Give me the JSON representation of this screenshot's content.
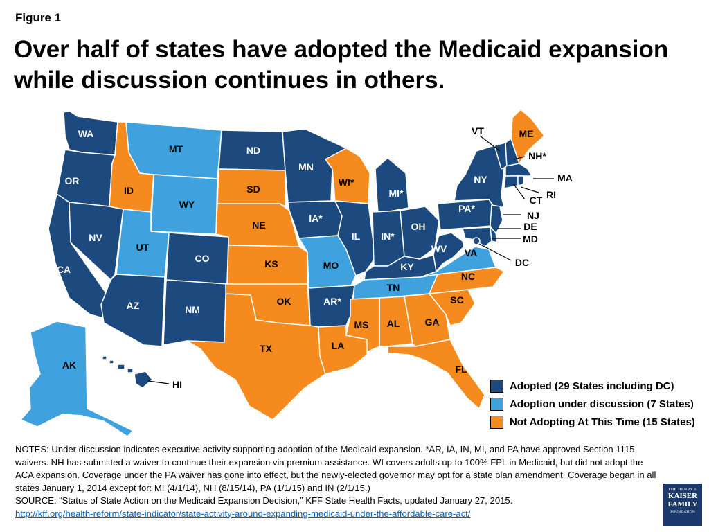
{
  "figure_label": "Figure 1",
  "title": "Over half of states have adopted the Medicaid expansion while discussion continues in others.",
  "colors": {
    "adopted": "#1c4a7e",
    "discussion": "#3fa2de",
    "not_adopting": "#f58a1f"
  },
  "legend": [
    {
      "status": "adopted",
      "label": "Adopted (29 States including DC)"
    },
    {
      "status": "discussion",
      "label": "Adoption under discussion (7 States)"
    },
    {
      "status": "not_adopting",
      "label": "Not Adopting At This Time (15 States)"
    }
  ],
  "states": {
    "WA": {
      "label": "WA",
      "status": "adopted"
    },
    "OR": {
      "label": "OR",
      "status": "adopted"
    },
    "CA": {
      "label": "CA",
      "status": "adopted"
    },
    "NV": {
      "label": "NV",
      "status": "adopted"
    },
    "ID": {
      "label": "ID",
      "status": "not_adopting"
    },
    "MT": {
      "label": "MT",
      "status": "discussion"
    },
    "WY": {
      "label": "WY",
      "status": "discussion"
    },
    "UT": {
      "label": "UT",
      "status": "discussion"
    },
    "AZ": {
      "label": "AZ",
      "status": "adopted"
    },
    "CO": {
      "label": "CO",
      "status": "adopted"
    },
    "NM": {
      "label": "NM",
      "status": "adopted"
    },
    "ND": {
      "label": "ND",
      "status": "adopted"
    },
    "SD": {
      "label": "SD",
      "status": "not_adopting"
    },
    "NE": {
      "label": "NE",
      "status": "not_adopting"
    },
    "KS": {
      "label": "KS",
      "status": "not_adopting"
    },
    "OK": {
      "label": "OK",
      "status": "not_adopting"
    },
    "TX": {
      "label": "TX",
      "status": "not_adopting"
    },
    "MN": {
      "label": "MN",
      "status": "adopted"
    },
    "IA": {
      "label": "IA*",
      "status": "adopted"
    },
    "MO": {
      "label": "MO",
      "status": "discussion"
    },
    "AR": {
      "label": "AR*",
      "status": "adopted"
    },
    "LA": {
      "label": "LA",
      "status": "not_adopting"
    },
    "WI": {
      "label": "WI*",
      "status": "not_adopting"
    },
    "IL": {
      "label": "IL",
      "status": "adopted"
    },
    "MI": {
      "label": "MI*",
      "status": "adopted"
    },
    "IN": {
      "label": "IN*",
      "status": "adopted"
    },
    "OH": {
      "label": "OH",
      "status": "adopted"
    },
    "KY": {
      "label": "KY",
      "status": "adopted"
    },
    "TN": {
      "label": "TN",
      "status": "discussion"
    },
    "MS": {
      "label": "MS",
      "status": "not_adopting"
    },
    "AL": {
      "label": "AL",
      "status": "not_adopting"
    },
    "GA": {
      "label": "GA",
      "status": "not_adopting"
    },
    "FL": {
      "label": "FL",
      "status": "not_adopting"
    },
    "SC": {
      "label": "SC",
      "status": "not_adopting"
    },
    "NC": {
      "label": "NC",
      "status": "not_adopting"
    },
    "VA": {
      "label": "VA",
      "status": "discussion"
    },
    "WV": {
      "label": "WV",
      "status": "adopted"
    },
    "PA": {
      "label": "PA*",
      "status": "adopted"
    },
    "NY": {
      "label": "NY",
      "status": "adopted"
    },
    "VT": {
      "label": "VT",
      "status": "adopted"
    },
    "NH": {
      "label": "NH*",
      "status": "adopted"
    },
    "ME": {
      "label": "ME",
      "status": "not_adopting"
    },
    "MA": {
      "label": "MA",
      "status": "adopted"
    },
    "RI": {
      "label": "RI",
      "status": "adopted"
    },
    "CT": {
      "label": "CT",
      "status": "adopted"
    },
    "NJ": {
      "label": "NJ",
      "status": "adopted"
    },
    "DE": {
      "label": "DE",
      "status": "adopted"
    },
    "MD": {
      "label": "MD",
      "status": "adopted"
    },
    "DC": {
      "label": "DC",
      "status": "adopted"
    },
    "AK": {
      "label": "AK",
      "status": "discussion"
    },
    "HI": {
      "label": "HI",
      "status": "adopted"
    }
  },
  "notes": [
    "NOTES: Under discussion indicates executive activity supporting adoption of the Medicaid expansion. *AR, IA, IN, MI, and PA have approved Section 1115 waivers. NH has submitted a waiver to continue their expansion via premium assistance. WI covers adults up to 100% FPL in Medicaid, but did not adopt the ACA expansion. Coverage under the PA waiver has gone into effect, but the newly-elected governor may opt for a state plan amendment. Coverage began in all states January 1, 2014 except for: MI (4/1/14), NH (8/15/14), PA (1/1/15) and IN (2/1/15.)",
    "SOURCE: “Status of State Action on the Medicaid Expansion Decision,” KFF State Health Facts, updated January 27, 2015."
  ],
  "source_link": "http://kff.org/health-reform/state-indicator/state-activity-around-expanding-medicaid-under-the-affordable-care-act/",
  "logo": {
    "line1": "THE HENRY J.",
    "line2": "KAISER",
    "line3": "FAMILY",
    "line4": "FOUNDATION"
  }
}
